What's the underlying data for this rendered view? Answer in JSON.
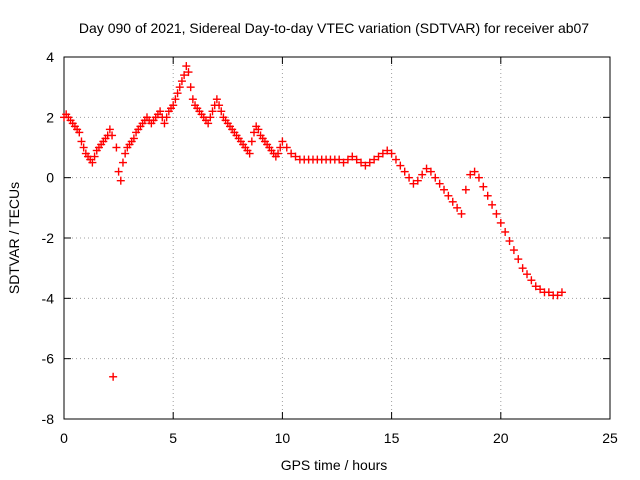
{
  "chart_data": {
    "type": "scatter",
    "title": "Day 090 of 2021, Sidereal Day-to-day VTEC variation (SDTVAR) for receiver ab07",
    "xlabel": "GPS time / hours",
    "ylabel": "SDTVAR / TECUs",
    "xlim": [
      0,
      25
    ],
    "ylim": [
      -8,
      4
    ],
    "xticks": [
      0,
      5,
      10,
      15,
      20,
      25
    ],
    "yticks": [
      -8,
      -6,
      -4,
      -2,
      0,
      2,
      4
    ],
    "xtick_labels": [
      "0",
      "5",
      "10",
      "15",
      "20",
      "25"
    ],
    "ytick_labels": [
      "-8",
      "-6",
      "-4",
      "-2",
      "0",
      "2",
      "4"
    ],
    "grid": true,
    "marker": "+",
    "color": "#ff0000",
    "series": [
      {
        "name": "SDTVAR",
        "x": [
          0.0,
          0.1,
          0.2,
          0.3,
          0.4,
          0.5,
          0.6,
          0.7,
          0.8,
          0.9,
          1.0,
          1.1,
          1.2,
          1.3,
          1.4,
          1.5,
          1.6,
          1.7,
          1.8,
          1.9,
          2.0,
          2.1,
          2.2,
          2.25,
          2.4,
          2.5,
          2.6,
          2.7,
          2.8,
          2.9,
          3.0,
          3.1,
          3.2,
          3.3,
          3.4,
          3.5,
          3.6,
          3.7,
          3.8,
          3.9,
          4.0,
          4.1,
          4.2,
          4.3,
          4.4,
          4.5,
          4.6,
          4.7,
          4.8,
          4.9,
          5.0,
          5.1,
          5.2,
          5.3,
          5.4,
          5.5,
          5.6,
          5.7,
          5.8,
          5.9,
          6.0,
          6.1,
          6.2,
          6.3,
          6.4,
          6.5,
          6.6,
          6.7,
          6.8,
          6.9,
          7.0,
          7.1,
          7.2,
          7.3,
          7.4,
          7.5,
          7.6,
          7.7,
          7.8,
          7.9,
          8.0,
          8.1,
          8.2,
          8.3,
          8.4,
          8.5,
          8.6,
          8.7,
          8.8,
          8.9,
          9.0,
          9.1,
          9.2,
          9.3,
          9.4,
          9.5,
          9.6,
          9.7,
          9.8,
          9.9,
          10.0,
          10.2,
          10.4,
          10.6,
          10.8,
          11.0,
          11.2,
          11.4,
          11.6,
          11.8,
          12.0,
          12.2,
          12.4,
          12.6,
          12.8,
          13.0,
          13.2,
          13.4,
          13.6,
          13.8,
          14.0,
          14.2,
          14.4,
          14.6,
          14.8,
          15.0,
          15.2,
          15.4,
          15.6,
          15.8,
          16.0,
          16.2,
          16.4,
          16.6,
          16.8,
          17.0,
          17.2,
          17.4,
          17.6,
          17.8,
          18.0,
          18.2,
          18.4,
          18.6,
          18.8,
          19.0,
          19.2,
          19.4,
          19.6,
          19.8,
          20.0,
          20.2,
          20.4,
          20.6,
          20.8,
          21.0,
          21.2,
          21.4,
          21.6,
          21.8,
          22.0,
          22.2,
          22.4,
          22.6,
          22.8
        ],
        "y": [
          2.0,
          2.1,
          2.0,
          1.9,
          1.8,
          1.7,
          1.6,
          1.5,
          1.2,
          1.0,
          0.8,
          0.7,
          0.6,
          0.5,
          0.7,
          0.9,
          1.0,
          1.1,
          1.2,
          1.3,
          1.4,
          1.6,
          1.4,
          -6.6,
          1.0,
          0.2,
          -0.1,
          0.5,
          0.8,
          1.0,
          1.1,
          1.2,
          1.3,
          1.5,
          1.6,
          1.7,
          1.8,
          1.9,
          2.0,
          1.9,
          1.8,
          1.9,
          2.0,
          2.1,
          2.2,
          2.0,
          1.8,
          2.0,
          2.2,
          2.3,
          2.4,
          2.6,
          2.8,
          3.0,
          3.2,
          3.4,
          3.7,
          3.5,
          3.0,
          2.6,
          2.4,
          2.3,
          2.2,
          2.1,
          2.0,
          1.9,
          1.8,
          2.0,
          2.2,
          2.4,
          2.6,
          2.4,
          2.2,
          2.0,
          1.9,
          1.8,
          1.7,
          1.6,
          1.5,
          1.4,
          1.3,
          1.2,
          1.1,
          1.0,
          0.9,
          0.8,
          1.2,
          1.5,
          1.7,
          1.6,
          1.4,
          1.3,
          1.2,
          1.1,
          1.0,
          0.9,
          0.8,
          0.7,
          0.8,
          1.0,
          1.2,
          1.0,
          0.8,
          0.7,
          0.6,
          0.6,
          0.6,
          0.6,
          0.6,
          0.6,
          0.6,
          0.6,
          0.6,
          0.6,
          0.5,
          0.6,
          0.7,
          0.6,
          0.5,
          0.4,
          0.5,
          0.6,
          0.7,
          0.8,
          0.9,
          0.8,
          0.6,
          0.4,
          0.2,
          0.0,
          -0.2,
          -0.1,
          0.1,
          0.3,
          0.2,
          0.0,
          -0.2,
          -0.4,
          -0.6,
          -0.8,
          -1.0,
          -1.2,
          -0.4,
          0.1,
          0.2,
          0.0,
          -0.3,
          -0.6,
          -0.9,
          -1.2,
          -1.5,
          -1.8,
          -2.1,
          -2.4,
          -2.7,
          -3.0,
          -3.2,
          -3.4,
          -3.6,
          -3.7,
          -3.8,
          -3.8,
          -3.9,
          -3.9,
          -3.8
        ]
      }
    ]
  }
}
